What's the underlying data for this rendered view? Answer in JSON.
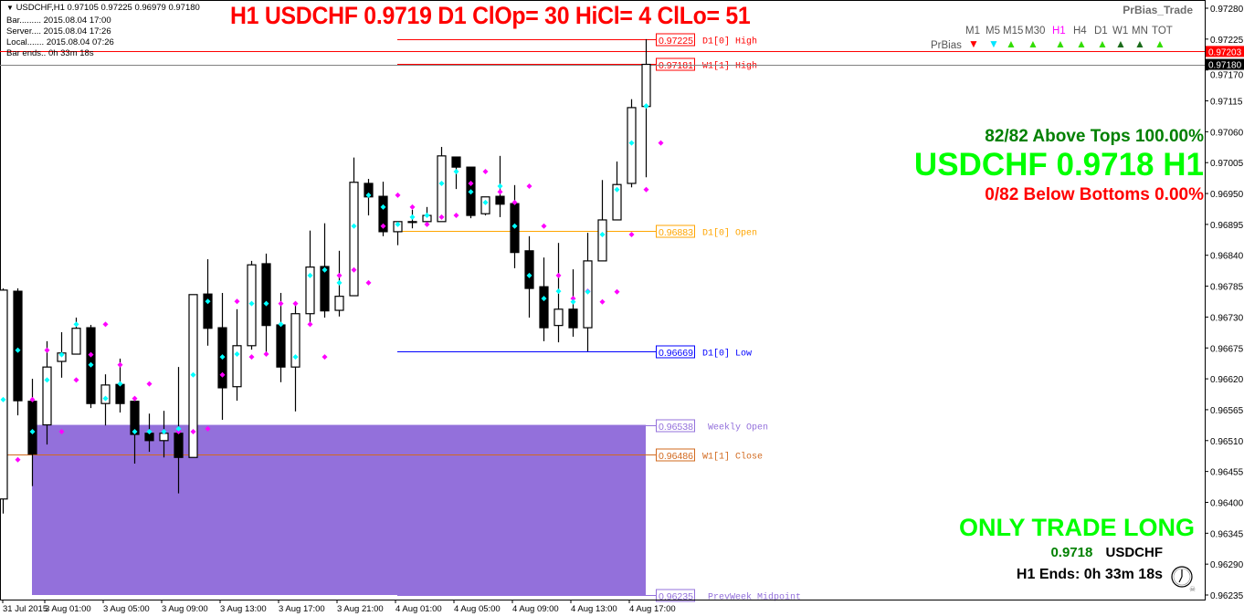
{
  "header": {
    "symbol_line": "USDCHF,H1  0.97105 0.97225 0.96979 0.97180",
    "bar": "Bar......... 2015.08.04 17:00",
    "server": "Server.... 2015.08.04 17:26",
    "local": "Local....... 2015.08.04 07:26",
    "bar_ends": "Bar ends.. 0h 33m 18s",
    "title": "H1 USDCHF 0.9719 D1 ClOp= 30 HiCl= 4 ClLo= 51"
  },
  "prbias": {
    "title": "PrBias_Trade",
    "row_label": "PrBias",
    "timeframes": [
      {
        "label": "M1",
        "dir": "down",
        "color": "#ff0000",
        "label_color": "#555555"
      },
      {
        "label": "M5",
        "dir": "down",
        "color": "#00e5ff",
        "label_color": "#555555"
      },
      {
        "label": "M15",
        "dir": "up",
        "color": "#33dd00",
        "label_color": "#555555"
      },
      {
        "label": "M30",
        "dir": "up",
        "color": "#33dd00",
        "label_color": "#555555"
      },
      {
        "label": "H1",
        "dir": "up",
        "color": "#33dd00",
        "label_color": "#ff00ff"
      },
      {
        "label": "H4",
        "dir": "up",
        "color": "#33dd00",
        "label_color": "#555555"
      },
      {
        "label": "D1",
        "dir": "up",
        "color": "#33dd00",
        "label_color": "#555555"
      },
      {
        "label": "W1",
        "dir": "up",
        "color": "#1a6b1a",
        "label_color": "#555555"
      },
      {
        "label": "MN",
        "dir": "up",
        "color": "#1a6b1a",
        "label_color": "#555555"
      },
      {
        "label": "TOT",
        "dir": "up",
        "color": "#33dd00",
        "label_color": "#555555"
      }
    ]
  },
  "stats": {
    "above": "82/82 Above Tops 100.00%",
    "price_big": "USDCHF 0.9718 H1",
    "below": "0/82 Below Bottoms 0.00%",
    "only_trade": "ONLY TRADE LONG",
    "price_small": "0.9718",
    "symbol_small": "USDCHF",
    "ends": "H1 Ends: 0h 33m 18s"
  },
  "colors": {
    "above": "#008000",
    "price_big": "#00ff00",
    "below": "#ff0000",
    "rect": "#9370db",
    "bull_body": "#ffffff",
    "bear_body": "#000000",
    "cyan_marker": "#00ffff",
    "magenta_marker": "#ff00ff"
  },
  "price_tags": [
    {
      "value": "0.97203",
      "bg": "#ff0000",
      "fg": "#ffffff",
      "price": 0.97203,
      "line_color": "#ff0000"
    },
    {
      "value": "0.97180",
      "bg": "#000000",
      "fg": "#ffffff",
      "price": 0.9718,
      "line_color": "#808080"
    }
  ],
  "levels": [
    {
      "label": "D1[0] High",
      "value": "0.97225",
      "price": 0.97225,
      "color": "#ff0000",
      "full": false
    },
    {
      "label": "W1[1] High",
      "value": "0.97181",
      "price": 0.97181,
      "color": "#ff0000",
      "full": false
    },
    {
      "label": "D1[0] Open",
      "value": "0.96883",
      "price": 0.96883,
      "color": "#ffa500",
      "full": false
    },
    {
      "label": "D1[0] Low",
      "value": "0.96669",
      "price": 0.96669,
      "color": "#0000ff",
      "full": false
    },
    {
      "label": "Weekly Open",
      "value": "0.96538",
      "price": 0.96538,
      "color": "#9370db",
      "full": false
    },
    {
      "label": "W1[1] Close",
      "value": "0.96486",
      "price": 0.96486,
      "color": "#d2691e",
      "full": true
    },
    {
      "label": "PrevWeek Midpoint",
      "value": "0.96235",
      "price": 0.96235,
      "color": "#9370db",
      "full": false
    }
  ],
  "chart_data": {
    "type": "candlestick",
    "symbol": "USDCHF",
    "timeframe": "H1",
    "ylim": [
      0.96235,
      0.9728
    ],
    "y_ticks": [
      "0.97280",
      "0.97225",
      "0.97170",
      "0.97115",
      "0.97060",
      "0.97005",
      "0.96950",
      "0.96895",
      "0.96840",
      "0.96785",
      "0.96730",
      "0.96675",
      "0.96620",
      "0.96565",
      "0.96510",
      "0.96455",
      "0.96400",
      "0.96345",
      "0.96290",
      "0.96235"
    ],
    "x_ticks": [
      "31 Jul 2015",
      "3 Aug 01:00",
      "3 Aug 05:00",
      "3 Aug 09:00",
      "3 Aug 13:00",
      "3 Aug 17:00",
      "3 Aug 21:00",
      "4 Aug 01:00",
      "4 Aug 05:00",
      "4 Aug 09:00",
      "4 Aug 13:00",
      "4 Aug 17:00"
    ],
    "ohlc": [
      [
        0.96406,
        0.96781,
        0.9638,
        0.96778
      ],
      [
        0.96776,
        0.96781,
        0.96555,
        0.96581
      ],
      [
        0.9658,
        0.9662,
        0.96429,
        0.96486
      ],
      [
        0.96538,
        0.96687,
        0.96503,
        0.96641
      ],
      [
        0.96651,
        0.96703,
        0.96622,
        0.96666
      ],
      [
        0.96664,
        0.96729,
        0.96664,
        0.9671
      ],
      [
        0.96711,
        0.96716,
        0.96568,
        0.96576
      ],
      [
        0.96576,
        0.96628,
        0.96537,
        0.96609
      ],
      [
        0.9661,
        0.96656,
        0.9656,
        0.96576
      ],
      [
        0.9658,
        0.9658,
        0.96469,
        0.96521
      ],
      [
        0.96523,
        0.96558,
        0.9649,
        0.9651
      ],
      [
        0.9651,
        0.96563,
        0.9648,
        0.96523
      ],
      [
        0.96523,
        0.96641,
        0.96416,
        0.9648
      ],
      [
        0.9648,
        0.9677,
        0.9648,
        0.9677
      ],
      [
        0.96771,
        0.96833,
        0.96679,
        0.9671
      ],
      [
        0.96711,
        0.96773,
        0.96547,
        0.96604
      ],
      [
        0.96606,
        0.96744,
        0.96581,
        0.96679
      ],
      [
        0.96679,
        0.9683,
        0.96672,
        0.96823
      ],
      [
        0.96825,
        0.96843,
        0.96661,
        0.96715
      ],
      [
        0.96716,
        0.96773,
        0.96614,
        0.96641
      ],
      [
        0.96641,
        0.96752,
        0.96562,
        0.96736
      ],
      [
        0.96736,
        0.96884,
        0.96721,
        0.96819
      ],
      [
        0.9682,
        0.96897,
        0.96729,
        0.96741
      ],
      [
        0.96742,
        0.96848,
        0.96731,
        0.96767
      ],
      [
        0.96768,
        0.97014,
        0.96768,
        0.9697
      ],
      [
        0.96968,
        0.96976,
        0.96911,
        0.96944
      ],
      [
        0.96945,
        0.96971,
        0.96874,
        0.96882
      ],
      [
        0.96882,
        0.969,
        0.96858,
        0.969
      ],
      [
        0.969,
        0.96921,
        0.96888,
        0.969
      ],
      [
        0.969,
        0.96926,
        0.96892,
        0.96911
      ],
      [
        0.969,
        0.97033,
        0.969,
        0.97017
      ],
      [
        0.97015,
        0.97015,
        0.96958,
        0.96997
      ],
      [
        0.96997,
        0.96997,
        0.96906,
        0.96911
      ],
      [
        0.96914,
        0.96944,
        0.96911,
        0.96944
      ],
      [
        0.96945,
        0.97017,
        0.96908,
        0.96931
      ],
      [
        0.96932,
        0.96965,
        0.96817,
        0.96845
      ],
      [
        0.96848,
        0.96874,
        0.96729,
        0.96781
      ],
      [
        0.96784,
        0.96836,
        0.96687,
        0.96711
      ],
      [
        0.96715,
        0.96862,
        0.96685,
        0.96744
      ],
      [
        0.96744,
        0.96815,
        0.96695,
        0.96711
      ],
      [
        0.96711,
        0.9688,
        0.96669,
        0.9683
      ],
      [
        0.9683,
        0.96974,
        0.9683,
        0.96903
      ],
      [
        0.96903,
        0.97007,
        0.96903,
        0.96966
      ],
      [
        0.96968,
        0.97118,
        0.96961,
        0.97103
      ],
      [
        0.97105,
        0.97225,
        0.96979,
        0.9718
      ]
    ],
    "cyan_markers": [
      0.96583,
      0.96671,
      0.96526,
      0.96618,
      0.96663,
      0.96717,
      0.96645,
      0.96585,
      0.96611,
      0.96526,
      0.96526,
      0.96526,
      0.96531,
      0.96627,
      0.96758,
      0.96659,
      0.96664,
      0.96754,
      0.96754,
      0.96717,
      0.96659,
      0.96804,
      0.96814,
      0.96791,
      0.96892,
      0.96947,
      0.96926,
      0.96895,
      0.96908,
      0.96911,
      0.96968,
      0.96989,
      0.96953,
      0.96934,
      0.96963,
      0.96892,
      0.96804,
      0.96763,
      0.96776,
      0.96757,
      0.96775,
      0.96877,
      0.96957,
      0.9704,
      0.97106
    ],
    "magenta_first": 0.96476,
    "weekly_range_rect": [
      0.96538,
      0.96235
    ],
    "grid": false
  }
}
